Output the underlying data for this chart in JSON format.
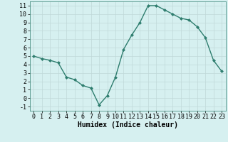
{
  "x": [
    0,
    1,
    2,
    3,
    4,
    5,
    6,
    7,
    8,
    9,
    10,
    11,
    12,
    13,
    14,
    15,
    16,
    17,
    18,
    19,
    20,
    21,
    22,
    23
  ],
  "y": [
    5,
    4.7,
    4.5,
    4.2,
    2.5,
    2.2,
    1.5,
    1.2,
    -0.8,
    0.3,
    2.5,
    5.8,
    7.5,
    9.0,
    11.0,
    11.0,
    10.5,
    10.0,
    9.5,
    9.3,
    8.5,
    7.2,
    4.5,
    3.2
  ],
  "line_color": "#2e7d6e",
  "marker": "D",
  "marker_size": 2.0,
  "bg_color": "#d6f0f0",
  "grid_color": "#c0d8d8",
  "xlabel": "Humidex (Indice chaleur)",
  "xlabel_fontsize": 7,
  "xlim": [
    -0.5,
    23.5
  ],
  "ylim": [
    -1.5,
    11.5
  ],
  "yticks": [
    -1,
    0,
    1,
    2,
    3,
    4,
    5,
    6,
    7,
    8,
    9,
    10,
    11
  ],
  "xticks": [
    0,
    1,
    2,
    3,
    4,
    5,
    6,
    7,
    8,
    9,
    10,
    11,
    12,
    13,
    14,
    15,
    16,
    17,
    18,
    19,
    20,
    21,
    22,
    23
  ],
  "tick_fontsize": 6,
  "linewidth": 1.0
}
